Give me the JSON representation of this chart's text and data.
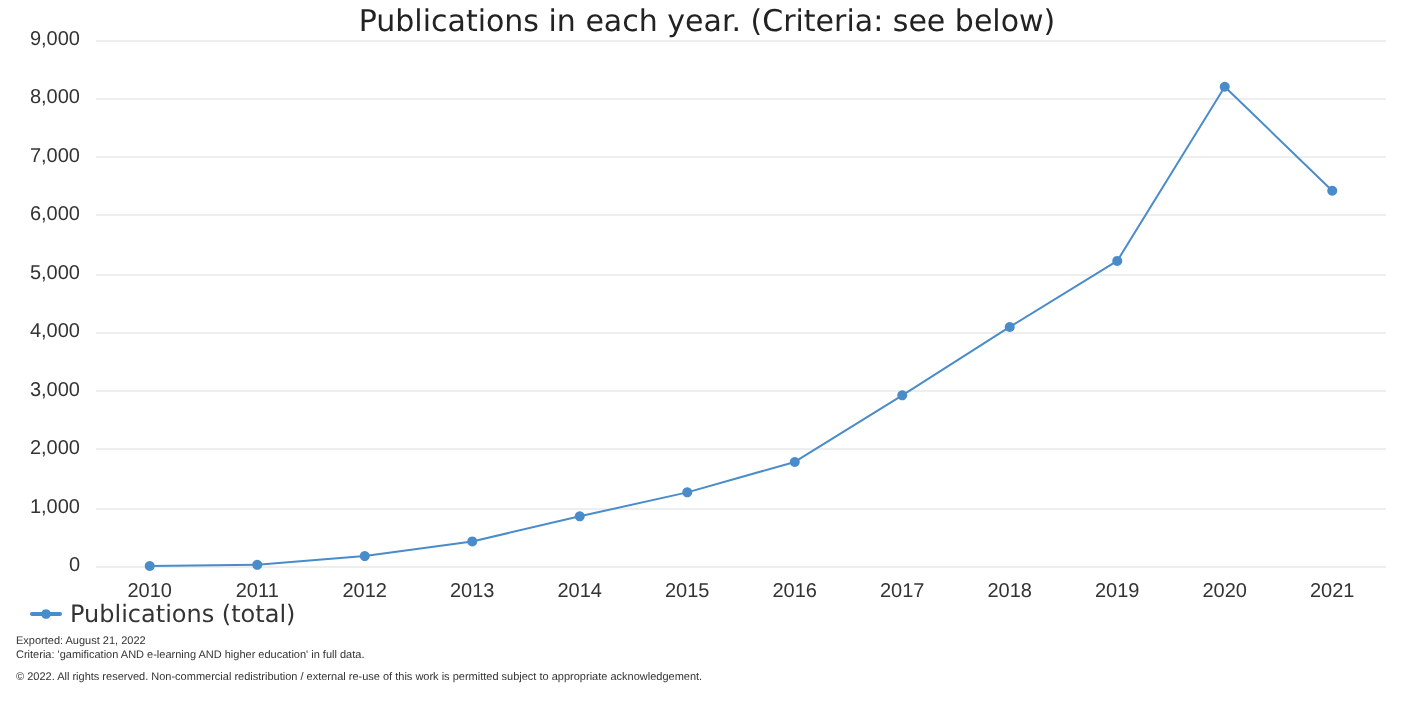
{
  "chart_data": {
    "type": "line",
    "title": "Publications in each year. (Criteria: see below)",
    "categories": [
      "2010",
      "2011",
      "2012",
      "2013",
      "2014",
      "2015",
      "2016",
      "2017",
      "2018",
      "2019",
      "2020",
      "2021"
    ],
    "series": [
      {
        "name": "Publications (total)",
        "color": "#4a8cca",
        "values": [
          0,
          20,
          170,
          420,
          850,
          1260,
          1780,
          2920,
          4090,
          5220,
          8200,
          6420
        ]
      }
    ],
    "ylim": [
      0,
      9000
    ],
    "yticks": [
      {
        "value": 0,
        "label": "0"
      },
      {
        "value": 1000,
        "label": "1,000"
      },
      {
        "value": 2000,
        "label": "2,000"
      },
      {
        "value": 3000,
        "label": "3,000"
      },
      {
        "value": 4000,
        "label": "4,000"
      },
      {
        "value": 5000,
        "label": "5,000"
      },
      {
        "value": 6000,
        "label": "6,000"
      },
      {
        "value": 7000,
        "label": "7,000"
      },
      {
        "value": 8000,
        "label": "8,000"
      },
      {
        "value": 9000,
        "label": "9,000"
      }
    ],
    "grid": "y",
    "legend": "bottom left",
    "marker": "circle",
    "line_style": "solid",
    "annotations": [
      "Exported: August 21, 2022",
      "Criteria: 'gamification AND e-learning AND higher education' in full data.",
      "© 2022. All rights reserved. Non-commercial redistribution / external re-use of this work is permitted subject to appropriate acknowledgement."
    ]
  }
}
